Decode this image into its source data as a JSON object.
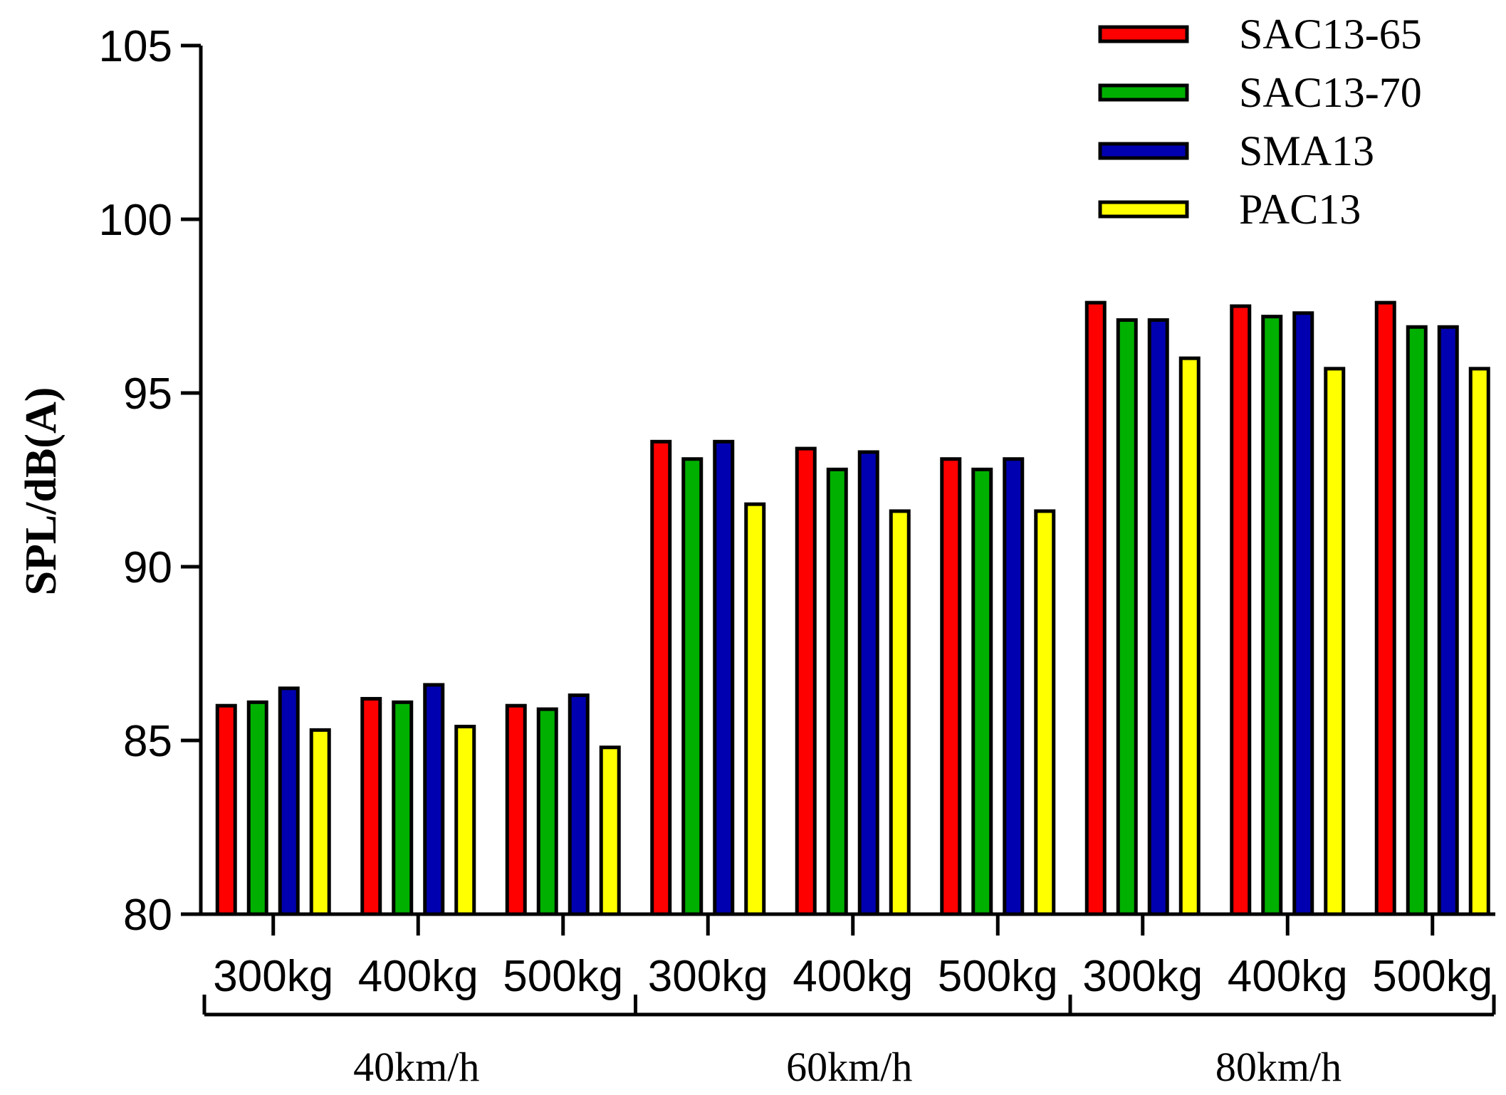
{
  "chart_data": {
    "type": "bar",
    "title": "",
    "xlabel": "",
    "ylabel": "SPL/dB(A)",
    "ylim": [
      80,
      105
    ],
    "yticks": [
      80,
      85,
      90,
      95,
      100,
      105
    ],
    "grid": false,
    "legend_position": "top-right",
    "categories": [
      "300kg",
      "400kg",
      "500kg",
      "300kg",
      "400kg",
      "500kg",
      "300kg",
      "400kg",
      "500kg"
    ],
    "groups": [
      {
        "label": "40km/h",
        "span": [
          0,
          2
        ]
      },
      {
        "label": "60km/h",
        "span": [
          3,
          5
        ]
      },
      {
        "label": "80km/h",
        "span": [
          6,
          8
        ]
      }
    ],
    "series": [
      {
        "name": "SAC13-65",
        "color": "#ff0000",
        "values": [
          86.0,
          86.2,
          86.0,
          93.6,
          93.4,
          93.1,
          97.6,
          97.5,
          97.6
        ]
      },
      {
        "name": "SAC13-70",
        "color": "#00b000",
        "values": [
          86.1,
          86.1,
          85.9,
          93.1,
          92.8,
          92.8,
          97.1,
          97.2,
          96.9
        ]
      },
      {
        "name": "SMA13",
        "color": "#0000b0",
        "values": [
          86.5,
          86.6,
          86.3,
          93.6,
          93.3,
          93.1,
          97.1,
          97.3,
          96.9
        ]
      },
      {
        "name": "PAC13",
        "color": "#ffff00",
        "values": [
          85.3,
          85.4,
          84.8,
          91.8,
          91.6,
          91.6,
          96.0,
          95.7,
          95.7
        ]
      }
    ]
  }
}
